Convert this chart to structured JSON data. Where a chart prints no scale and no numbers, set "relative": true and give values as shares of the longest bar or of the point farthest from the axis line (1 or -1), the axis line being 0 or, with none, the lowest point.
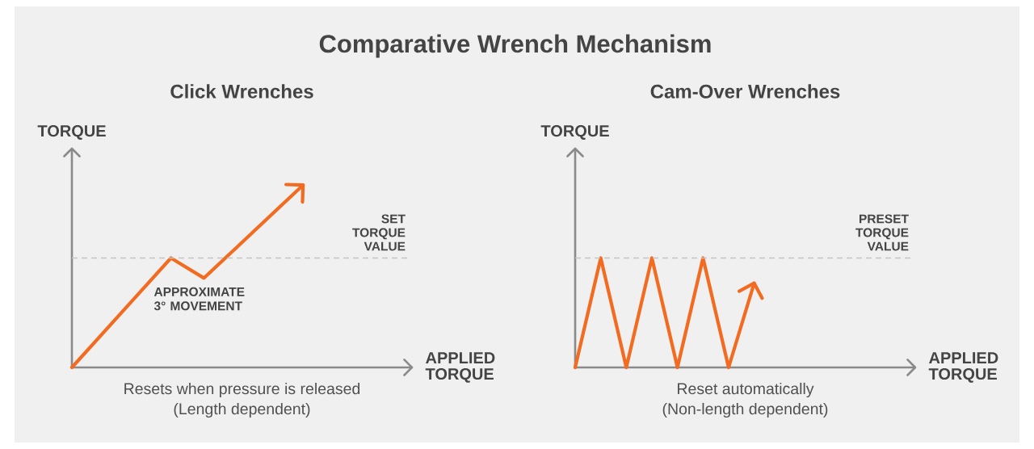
{
  "chart_data": [
    {
      "type": "other",
      "title": "Comparative Wrench Mechanism"
    },
    {
      "type": "line",
      "relative": true,
      "title": "Click Wrenches",
      "xlabel": "APPLIED TORQUE",
      "ylabel": "TORQUE",
      "categories": [
        null,
        null,
        null,
        null,
        null,
        null,
        null,
        null,
        null,
        null,
        null
      ],
      "series": [
        {
          "color": "#f26b21",
          "values": [
            0,
            0.2,
            0.4,
            0.6,
            0.49,
            0.66,
            0.83,
            1,
            null,
            null,
            null
          ]
        }
      ],
      "ref_lines": [
        {
          "axis": "y",
          "value": 0.6,
          "label": "SET TORQUE VALUE",
          "color": "#c4c4c4",
          "line_style": "dashed"
        }
      ],
      "annotations": [
        {
          "text": "APPROXIMATE 3° MOVEMENT",
          "y": 0.49
        },
        "Resets when pressure is released",
        "(Length dependent)"
      ]
    },
    {
      "type": "line",
      "relative": true,
      "title": "Cam-Over Wrenches",
      "xlabel": "APPLIED TORQUE",
      "ylabel": "TORQUE",
      "categories": [
        null,
        null,
        null,
        null,
        null,
        null,
        null,
        null,
        null,
        null,
        null,
        null,
        null,
        null
      ],
      "series": [
        {
          "color": "#f26b21",
          "values": [
            0,
            1,
            0,
            1,
            0,
            1,
            0,
            0.77,
            null,
            null,
            null,
            null,
            null,
            null
          ]
        }
      ],
      "ref_lines": [
        {
          "axis": "y",
          "value": 1,
          "label": "PRESET TORQUE VALUE",
          "color": "#c4c4c4",
          "line_style": "dashed"
        }
      ],
      "annotations": [
        "Reset automatically",
        "(Non-length dependent)"
      ]
    }
  ]
}
